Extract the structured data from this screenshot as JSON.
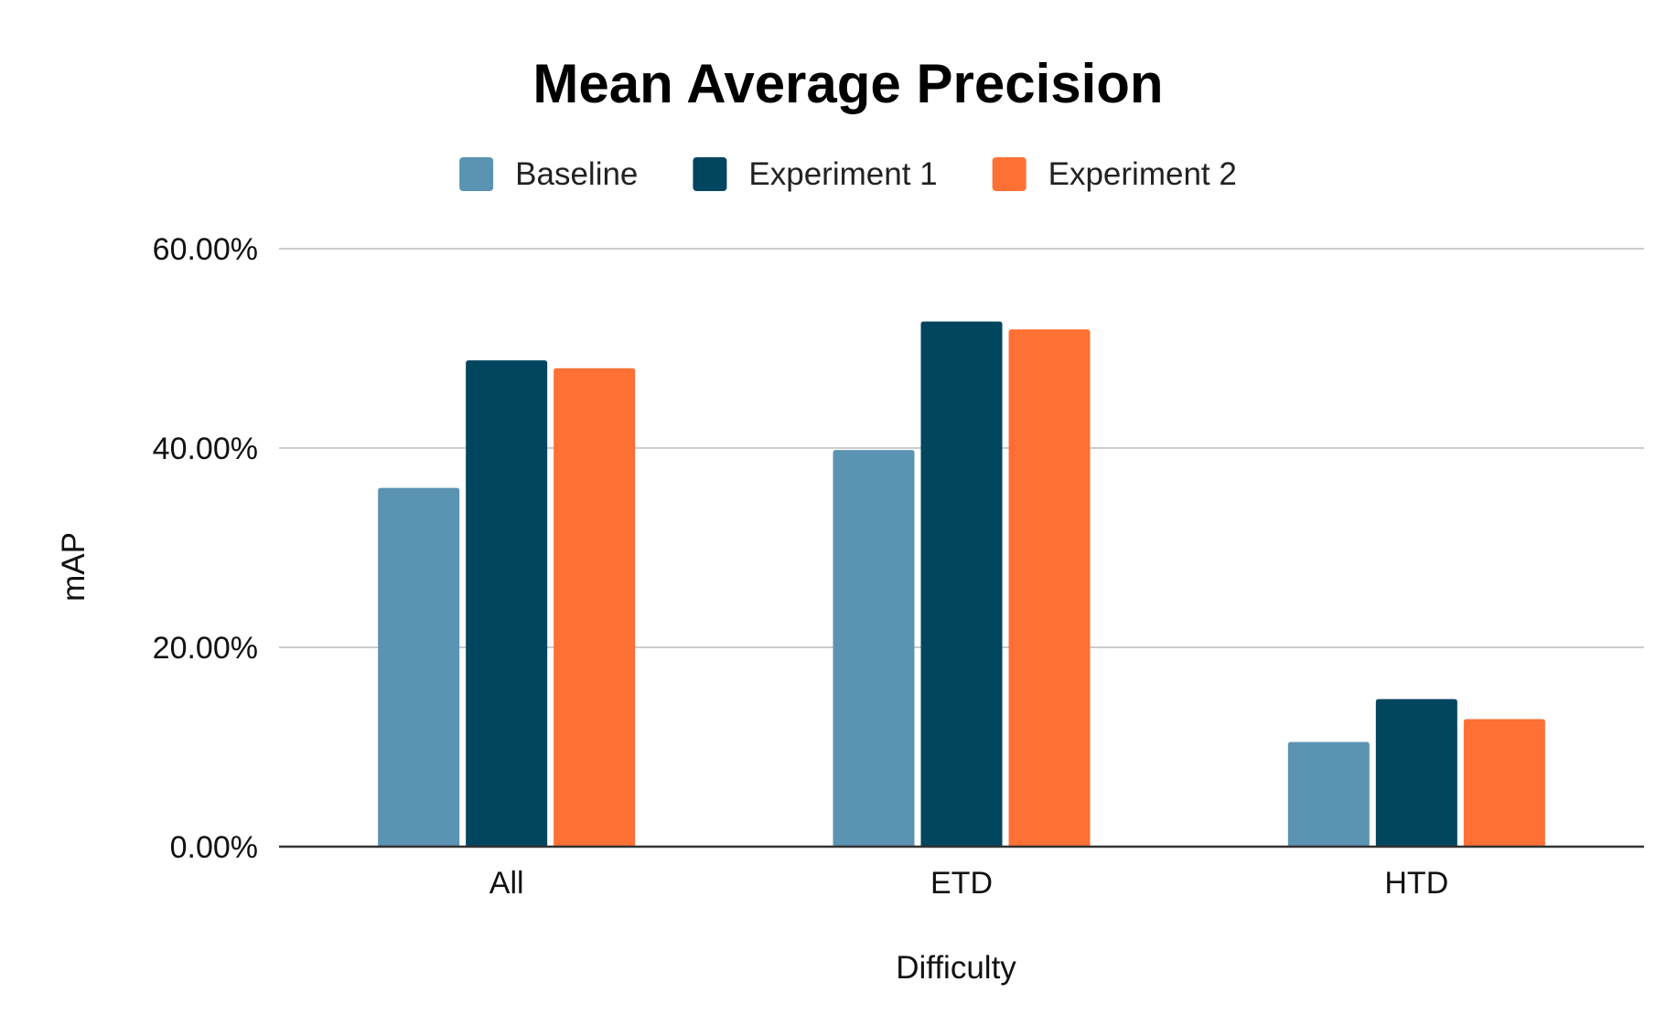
{
  "chart_data": {
    "type": "bar",
    "title": "Mean Average Precision",
    "xlabel": "Difficulty",
    "ylabel": "mAP",
    "categories": [
      "All",
      "ETD",
      "HTD"
    ],
    "series": [
      {
        "name": "Baseline",
        "color": "#5b93b2",
        "values": [
          0.36,
          0.398,
          0.105
        ]
      },
      {
        "name": "Experiment 1",
        "color": "#02455f",
        "values": [
          0.488,
          0.527,
          0.148
        ]
      },
      {
        "name": "Experiment 2",
        "color": "#ff7034",
        "values": [
          0.48,
          0.519,
          0.128
        ]
      }
    ],
    "ylim": [
      0,
      0.6
    ],
    "yticks": [
      0,
      0.2,
      0.4,
      0.6
    ],
    "ytick_labels": [
      "0.00%",
      "20.00%",
      "40.00%",
      "60.00%"
    ],
    "grid": true,
    "legend_position": "top-center"
  }
}
